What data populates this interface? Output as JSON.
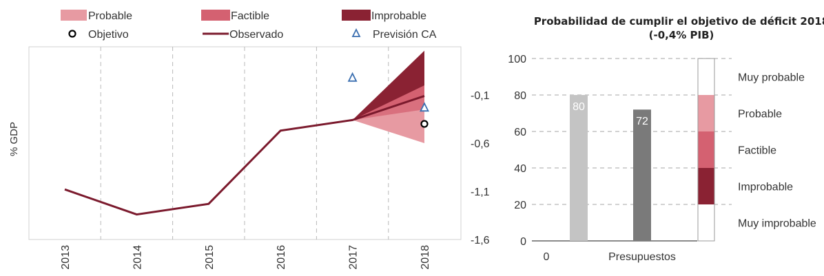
{
  "colors": {
    "probable": "#e79aa2",
    "factible": "#d46171",
    "improbable": "#8a2233",
    "observed": "#7b1a2d",
    "forecast": "#3b6fb0",
    "bar_light": "#c4c4c4",
    "bar_dark": "#7a7a7a",
    "grid": "#b8b8b8",
    "axis": "#444444"
  },
  "chart_data": [
    {
      "type": "line",
      "title": "",
      "ylabel": "% GDP",
      "x": [
        "2013",
        "2014",
        "2015",
        "2016",
        "2017",
        "2018"
      ],
      "ylim": [
        -1.6,
        0.4
      ],
      "yticks": [
        "-1,6",
        "-1,1",
        "-0,6",
        "-0,1"
      ],
      "ytick_values": [
        -1.6,
        -1.1,
        -0.6,
        -0.1
      ],
      "legend": [
        {
          "key": "probable",
          "label": "Probable",
          "symbol": "fill"
        },
        {
          "key": "factible",
          "label": "Factible",
          "symbol": "fill"
        },
        {
          "key": "improbable",
          "label": "Improbable",
          "symbol": "fill"
        },
        {
          "key": "objetivo",
          "label": "Objetivo",
          "symbol": "circle"
        },
        {
          "key": "observado",
          "label": "Observado",
          "symbol": "line"
        },
        {
          "key": "prevision",
          "label": "Previsión CA",
          "symbol": "triangle"
        }
      ],
      "series": [
        {
          "name": "Observado",
          "x": [
            "2013",
            "2014",
            "2015",
            "2016",
            "2017",
            "2018"
          ],
          "values": [
            -1.08,
            -1.34,
            -1.23,
            -0.47,
            -0.36,
            -0.11
          ]
        },
        {
          "name": "Objetivo",
          "x": [
            "2018"
          ],
          "values": [
            -0.4
          ]
        },
        {
          "name": "Previsión CA",
          "x": [
            "2017",
            "2018"
          ],
          "values": [
            0.08,
            -0.23
          ]
        }
      ],
      "fan": {
        "x": [
          "2017",
          "2018"
        ],
        "start": -0.36,
        "improbable": [
          -0.11,
          0.36
        ],
        "factible": [
          -0.11,
          0.0
        ],
        "probable": [
          -0.6,
          -0.11
        ],
        "extra_probable": [
          -0.25,
          -0.11
        ]
      }
    },
    {
      "type": "bar",
      "title": "Probabilidad de cumplir el objetivo de déficit 2018",
      "subtitle": "(-0,4% PIB)",
      "categories": [
        "0",
        "Presupuestos"
      ],
      "values": [
        80,
        72
      ],
      "data_labels": [
        "80",
        "72"
      ],
      "ylim": [
        0,
        100
      ],
      "yticks": [
        0,
        20,
        40,
        60,
        80,
        100
      ],
      "grid": true,
      "scale_bands": [
        {
          "label": "Muy probable",
          "range": [
            80,
            100
          ],
          "key": "none"
        },
        {
          "label": "Probable",
          "range": [
            60,
            80
          ],
          "key": "probable"
        },
        {
          "label": "Factible",
          "range": [
            40,
            60
          ],
          "key": "factible"
        },
        {
          "label": "Improbable",
          "range": [
            20,
            40
          ],
          "key": "improbable"
        },
        {
          "label": "Muy improbable",
          "range": [
            0,
            20
          ],
          "key": "none"
        }
      ]
    }
  ]
}
